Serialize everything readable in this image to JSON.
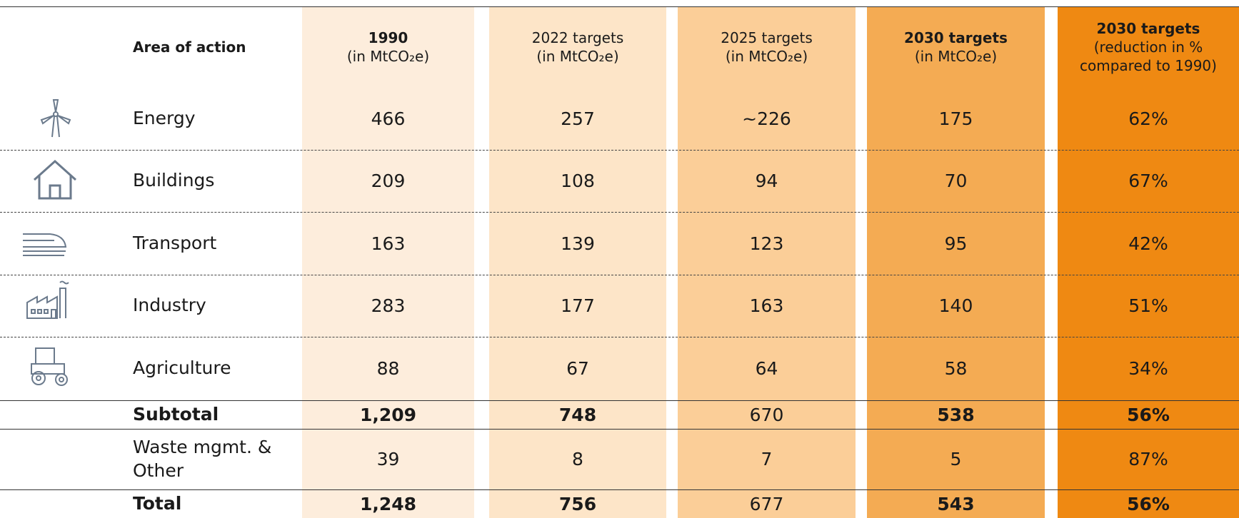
{
  "table": {
    "header": {
      "area": "Area of action",
      "columns": [
        {
          "title": "1990",
          "unit": "(in MtCO₂e)"
        },
        {
          "title": "2022 targets",
          "unit": "(in MtCO₂e)"
        },
        {
          "title": "2025 targets",
          "unit": "(in MtCO₂e)"
        },
        {
          "title": "2030 targets",
          "unit": "(in MtCO₂e)"
        },
        {
          "title": "2030 targets",
          "unit": "(reduction in % compared to 1990)"
        }
      ]
    },
    "rows": [
      {
        "area": "Energy",
        "values": [
          "466",
          "257",
          "~226",
          "175",
          "62%"
        ]
      },
      {
        "area": "Buildings",
        "values": [
          "209",
          "108",
          "94",
          "70",
          "67%"
        ]
      },
      {
        "area": "Transport",
        "values": [
          "163",
          "139",
          "123",
          "95",
          "42%"
        ]
      },
      {
        "area": "Industry",
        "values": [
          "283",
          "177",
          "163",
          "140",
          "51%"
        ]
      },
      {
        "area": "Agriculture",
        "values": [
          "88",
          "67",
          "64",
          "58",
          "34%"
        ]
      },
      {
        "area": "Subtotal",
        "values": [
          "1,209",
          "748",
          "670",
          "538",
          "56%"
        ]
      },
      {
        "area": "Waste mgmt. & Other",
        "values": [
          "39",
          "8",
          "7",
          "5",
          "87%"
        ]
      },
      {
        "area": "Total",
        "values": [
          "1,248",
          "756",
          "677",
          "543",
          "56%"
        ]
      }
    ]
  }
}
